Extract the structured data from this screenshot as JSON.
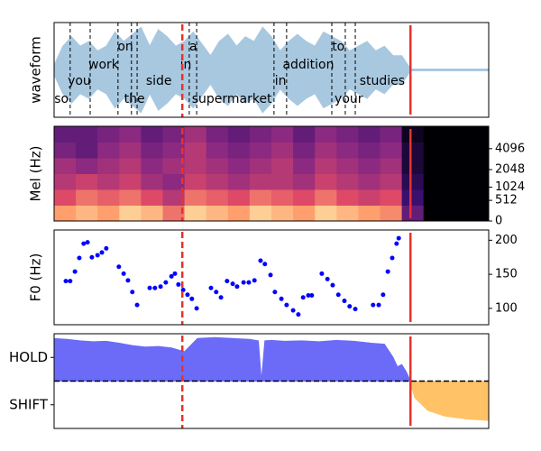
{
  "chart_data": [
    {
      "type": "waveform",
      "ylabel": "waveform",
      "xlim": [
        0,
        1
      ],
      "ylim": [
        -1,
        1
      ],
      "color": "#a8c8e0",
      "x": [
        0,
        0.02,
        0.04,
        0.06,
        0.08,
        0.1,
        0.12,
        0.14,
        0.16,
        0.18,
        0.2,
        0.22,
        0.24,
        0.26,
        0.28,
        0.3,
        0.32,
        0.34,
        0.36,
        0.38,
        0.4,
        0.42,
        0.44,
        0.46,
        0.48,
        0.5,
        0.52,
        0.54,
        0.56,
        0.58,
        0.6,
        0.62,
        0.64,
        0.66,
        0.68,
        0.7,
        0.72,
        0.74,
        0.76,
        0.78,
        0.8,
        0.82,
        1
      ],
      "values": [
        0.1,
        0.5,
        0.7,
        0.5,
        0.6,
        0.4,
        0.5,
        0.8,
        0.6,
        0.75,
        0.9,
        0.5,
        0.85,
        0.7,
        0.5,
        0.6,
        0.8,
        0.55,
        0.3,
        0.6,
        0.75,
        0.5,
        0.7,
        0.6,
        0.9,
        0.7,
        0.4,
        0.6,
        0.75,
        0.6,
        0.5,
        0.8,
        0.7,
        0.6,
        0.4,
        0.5,
        0.6,
        0.4,
        0.5,
        0.3,
        0.3,
        0.02,
        0.02
      ],
      "words": [
        {
          "text": "so",
          "x": 0.017
        },
        {
          "text": "you",
          "x": 0.058
        },
        {
          "text": "work",
          "x": 0.114
        },
        {
          "text": "on",
          "x": 0.164
        },
        {
          "text": "the",
          "x": 0.185
        },
        {
          "text": "side",
          "x": 0.241
        },
        {
          "text": "in",
          "x": 0.303
        },
        {
          "text": "a",
          "x": 0.32
        },
        {
          "text": "supermarket",
          "x": 0.409
        },
        {
          "text": "in",
          "x": 0.521
        },
        {
          "text": "addition",
          "x": 0.585
        },
        {
          "text": "to",
          "x": 0.654
        },
        {
          "text": "your",
          "x": 0.678
        },
        {
          "text": "studies",
          "x": 0.755
        }
      ],
      "boundaries": [
        0.037,
        0.083,
        0.147,
        0.178,
        0.191,
        0.311,
        0.328,
        0.506,
        0.535,
        0.639,
        0.67,
        0.693
      ],
      "vlines": [
        {
          "x": 0.295,
          "dashed": true,
          "color": "#e8322a"
        },
        {
          "x": 0.82,
          "dashed": false,
          "color": "#e8322a"
        }
      ]
    },
    {
      "type": "heatmap",
      "ylabel": "Mel (Hz)",
      "yscale": "mel",
      "xlim": [
        0,
        1
      ],
      "ylim": [
        0,
        8000
      ],
      "yticks": [
        0,
        512,
        1024,
        2048,
        4096
      ],
      "colormap": [
        "#000004",
        "#3b0f70",
        "#8c2981",
        "#de4968",
        "#fe9f6d",
        "#fcfdbf"
      ],
      "z": [
        [
          0.8,
          0.85,
          0.8,
          0.9,
          0.85,
          0.7,
          0.9,
          0.85,
          0.8,
          0.9,
          0.85,
          0.8,
          0.9,
          0.85,
          0.8,
          0.75,
          0.3,
          0,
          0,
          0
        ],
        [
          0.6,
          0.7,
          0.65,
          0.7,
          0.6,
          0.5,
          0.7,
          0.65,
          0.6,
          0.7,
          0.65,
          0.6,
          0.7,
          0.6,
          0.55,
          0.6,
          0.2,
          0,
          0,
          0
        ],
        [
          0.5,
          0.55,
          0.5,
          0.55,
          0.45,
          0.4,
          0.55,
          0.5,
          0.45,
          0.5,
          0.5,
          0.45,
          0.55,
          0.5,
          0.45,
          0.5,
          0.15,
          0,
          0,
          0
        ],
        [
          0.45,
          0.4,
          0.45,
          0.5,
          0.4,
          0.45,
          0.5,
          0.45,
          0.4,
          0.45,
          0.5,
          0.4,
          0.5,
          0.45,
          0.4,
          0.45,
          0.1,
          0,
          0,
          0
        ],
        [
          0.35,
          0.3,
          0.4,
          0.45,
          0.35,
          0.4,
          0.5,
          0.4,
          0.35,
          0.4,
          0.45,
          0.35,
          0.45,
          0.4,
          0.35,
          0.4,
          0.1,
          0,
          0,
          0
        ],
        [
          0.3,
          0.3,
          0.35,
          0.4,
          0.3,
          0.35,
          0.45,
          0.35,
          0.3,
          0.35,
          0.4,
          0.3,
          0.4,
          0.35,
          0.3,
          0.35,
          0.05,
          0,
          0,
          0
        ]
      ],
      "vlines": [
        {
          "x": 0.295,
          "dashed": true,
          "color": "#e8322a"
        },
        {
          "x": 0.82,
          "dashed": false,
          "color": "#e8322a"
        }
      ]
    },
    {
      "type": "scatter",
      "ylabel": "F0 (Hz)",
      "xlim": [
        0,
        1
      ],
      "ylim": [
        76,
        215
      ],
      "yticks": [
        100,
        150,
        200
      ],
      "color": "#0000ff",
      "x": [
        0.027,
        0.037,
        0.048,
        0.058,
        0.068,
        0.077,
        0.087,
        0.1,
        0.11,
        0.12,
        0.149,
        0.16,
        0.17,
        0.18,
        0.191,
        0.22,
        0.232,
        0.245,
        0.257,
        0.27,
        0.278,
        0.286,
        0.297,
        0.307,
        0.317,
        0.328,
        0.361,
        0.373,
        0.384,
        0.398,
        0.411,
        0.421,
        0.436,
        0.448,
        0.461,
        0.475,
        0.485,
        0.498,
        0.508,
        0.523,
        0.535,
        0.55,
        0.562,
        0.573,
        0.585,
        0.593,
        0.616,
        0.629,
        0.641,
        0.654,
        0.668,
        0.68,
        0.693,
        0.734,
        0.747,
        0.757,
        0.768,
        0.778,
        0.788,
        0.793
      ],
      "values": [
        140,
        140,
        154,
        174,
        195,
        197,
        175,
        178,
        182,
        188,
        161,
        151,
        141,
        124,
        105,
        130,
        130,
        132,
        138,
        147,
        151,
        135,
        127,
        120,
        114,
        100,
        130,
        124,
        116,
        140,
        136,
        132,
        138,
        138,
        141,
        170,
        165,
        149,
        124,
        114,
        105,
        97,
        91,
        116,
        119,
        119,
        151,
        143,
        134,
        120,
        111,
        103,
        99,
        105,
        105,
        120,
        154,
        174,
        195,
        203
      ],
      "vlines": [
        {
          "x": 0.295,
          "dashed": true,
          "color": "#e8322a"
        },
        {
          "x": 0.82,
          "dashed": false,
          "color": "#e8322a"
        }
      ]
    },
    {
      "type": "area",
      "xlim": [
        0,
        1
      ],
      "ylim": [
        -1,
        1
      ],
      "yticks": [
        {
          "value": 0.5,
          "label": "HOLD"
        },
        {
          "value": -0.5,
          "label": "SHIFT"
        }
      ],
      "hline": 0,
      "x": [
        0,
        0.03,
        0.06,
        0.09,
        0.12,
        0.15,
        0.18,
        0.21,
        0.24,
        0.27,
        0.3,
        0.33,
        0.37,
        0.41,
        0.45,
        0.47,
        0.477,
        0.485,
        0.5,
        0.53,
        0.57,
        0.61,
        0.65,
        0.69,
        0.73,
        0.76,
        0.78,
        0.79,
        0.8,
        0.81,
        0.82,
        0.83,
        0.86,
        0.9,
        0.95,
        1
      ],
      "series": [
        {
          "color": "#6b6bf7",
          "values": [
            0.9,
            0.88,
            0.85,
            0.83,
            0.84,
            0.8,
            0.75,
            0.72,
            0.73,
            0.7,
            0.62,
            0.9,
            0.92,
            0.9,
            0.88,
            0.85,
            0,
            0.85,
            0.86,
            0.84,
            0.85,
            0.83,
            0.86,
            0.84,
            0.8,
            0.78,
            0.5,
            0.3,
            0.35,
            0.2,
            0,
            null,
            null,
            null,
            null,
            null
          ]
        },
        {
          "color": "#ffc266",
          "values": [
            null,
            null,
            null,
            null,
            null,
            null,
            null,
            null,
            null,
            null,
            null,
            null,
            null,
            null,
            null,
            null,
            null,
            null,
            null,
            null,
            null,
            null,
            null,
            null,
            null,
            null,
            null,
            null,
            null,
            null,
            -0.05,
            -0.35,
            -0.62,
            -0.74,
            -0.8,
            -0.83
          ]
        }
      ],
      "vlines": [
        {
          "x": 0.295,
          "dashed": true,
          "color": "#e8322a"
        },
        {
          "x": 0.82,
          "dashed": false,
          "color": "#e8322a"
        }
      ]
    }
  ]
}
